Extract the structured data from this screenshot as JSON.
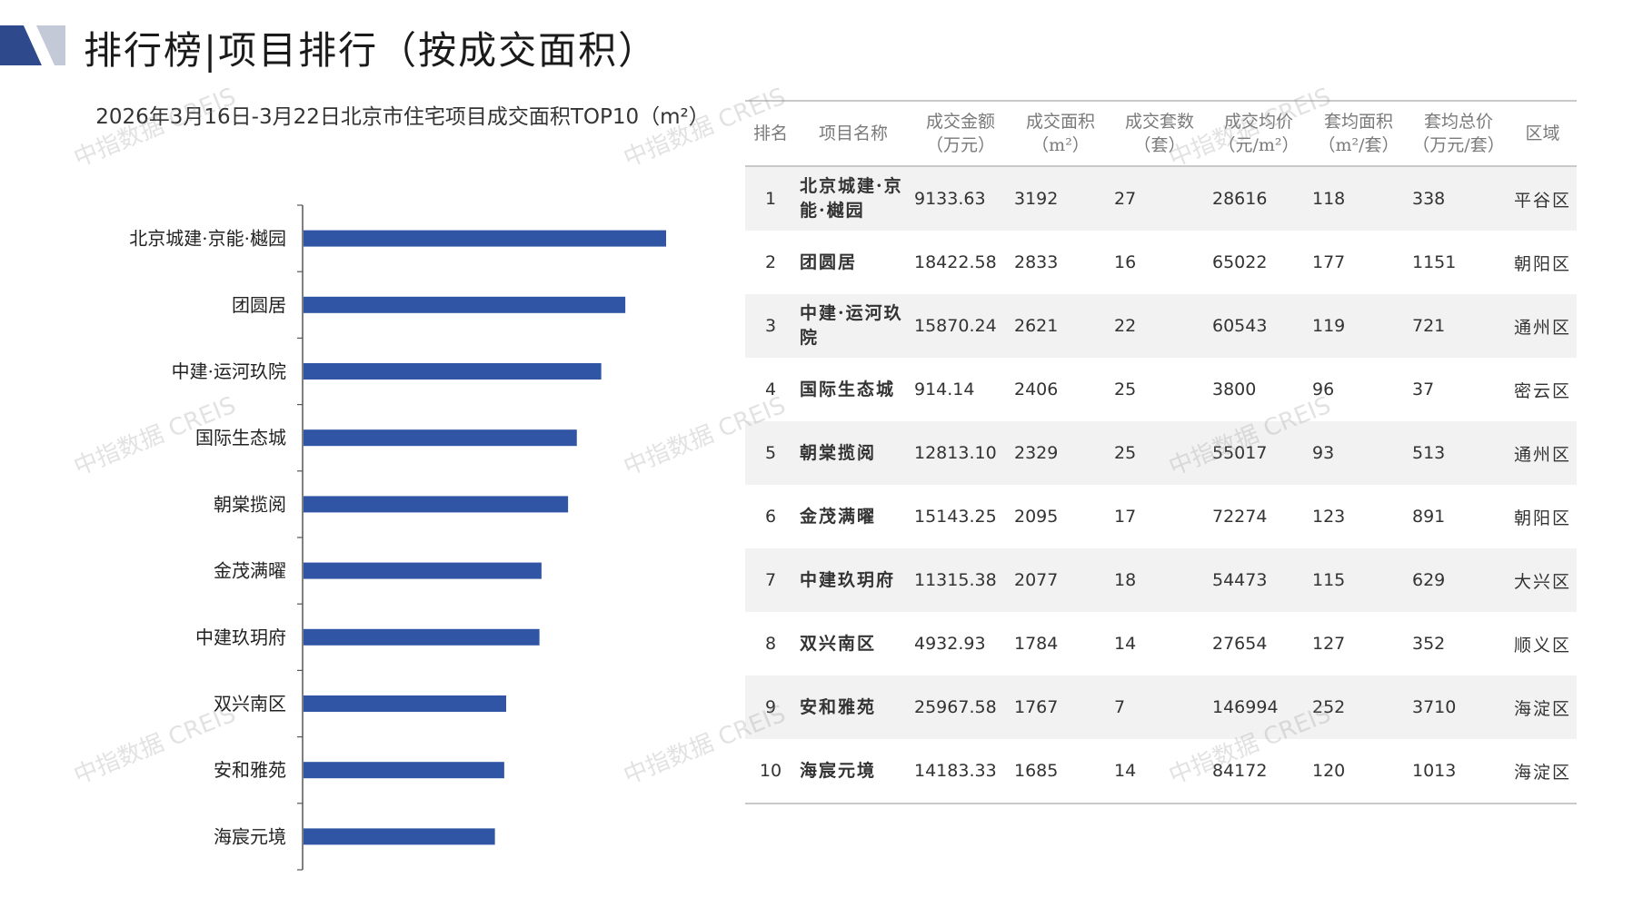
{
  "header": {
    "title": "排行榜|项目排行（按成交面积）",
    "icon": "title-chevron-icon",
    "colors": {
      "accent_dark": "#2f4a8c",
      "accent_light": "#b7bfcf"
    }
  },
  "chart_data": {
    "type": "bar",
    "orientation": "horizontal",
    "title": "2026年3月16日-3月22日北京市住宅项目成交面积TOP10（m²）",
    "categories": [
      "北京城建·京能·樾园",
      "团圆居",
      "中建·运河玖院",
      "国际生态城",
      "朝棠揽阅",
      "金茂满曜",
      "中建玖玥府",
      "双兴南区",
      "安和雅苑",
      "海宸元境"
    ],
    "values": [
      3192,
      2833,
      2621,
      2406,
      2329,
      2095,
      2077,
      1784,
      1767,
      1685
    ],
    "xlim": [
      0,
      3600
    ],
    "xlabel": "",
    "ylabel": "",
    "grid": false,
    "bar_color": "#2f55a4"
  },
  "table": {
    "headers": [
      [
        "排名"
      ],
      [
        "项目名称"
      ],
      [
        "成交金额",
        "（万元）"
      ],
      [
        "成交面积",
        "（m²）"
      ],
      [
        "成交套数",
        "（套）"
      ],
      [
        "成交均价",
        "（元/m²）"
      ],
      [
        "套均面积",
        "（m²/套）"
      ],
      [
        "套均总价",
        "（万元/套）"
      ],
      [
        "区域"
      ]
    ],
    "rows": [
      [
        "1",
        "北京城建·京能·樾园",
        "9133.63",
        "3192",
        "27",
        "28616",
        "118",
        "338",
        "平谷区"
      ],
      [
        "2",
        "团圆居",
        "18422.58",
        "2833",
        "16",
        "65022",
        "177",
        "1151",
        "朝阳区"
      ],
      [
        "3",
        "中建·运河玖院",
        "15870.24",
        "2621",
        "22",
        "60543",
        "119",
        "721",
        "通州区"
      ],
      [
        "4",
        "国际生态城",
        "914.14",
        "2406",
        "25",
        "3800",
        "96",
        "37",
        "密云区"
      ],
      [
        "5",
        "朝棠揽阅",
        "12813.10",
        "2329",
        "25",
        "55017",
        "93",
        "513",
        "通州区"
      ],
      [
        "6",
        "金茂满曜",
        "15143.25",
        "2095",
        "17",
        "72274",
        "123",
        "891",
        "朝阳区"
      ],
      [
        "7",
        "中建玖玥府",
        "11315.38",
        "2077",
        "18",
        "54473",
        "115",
        "629",
        "大兴区"
      ],
      [
        "8",
        "双兴南区",
        "4932.93",
        "1784",
        "14",
        "27654",
        "127",
        "352",
        "顺义区"
      ],
      [
        "9",
        "安和雅苑",
        "25967.58",
        "1767",
        "7",
        "146994",
        "252",
        "3710",
        "海淀区"
      ],
      [
        "10",
        "海宸元境",
        "14183.33",
        "1685",
        "14",
        "84172",
        "120",
        "1013",
        "海淀区"
      ]
    ]
  },
  "watermark": "中指数据 CREIS"
}
